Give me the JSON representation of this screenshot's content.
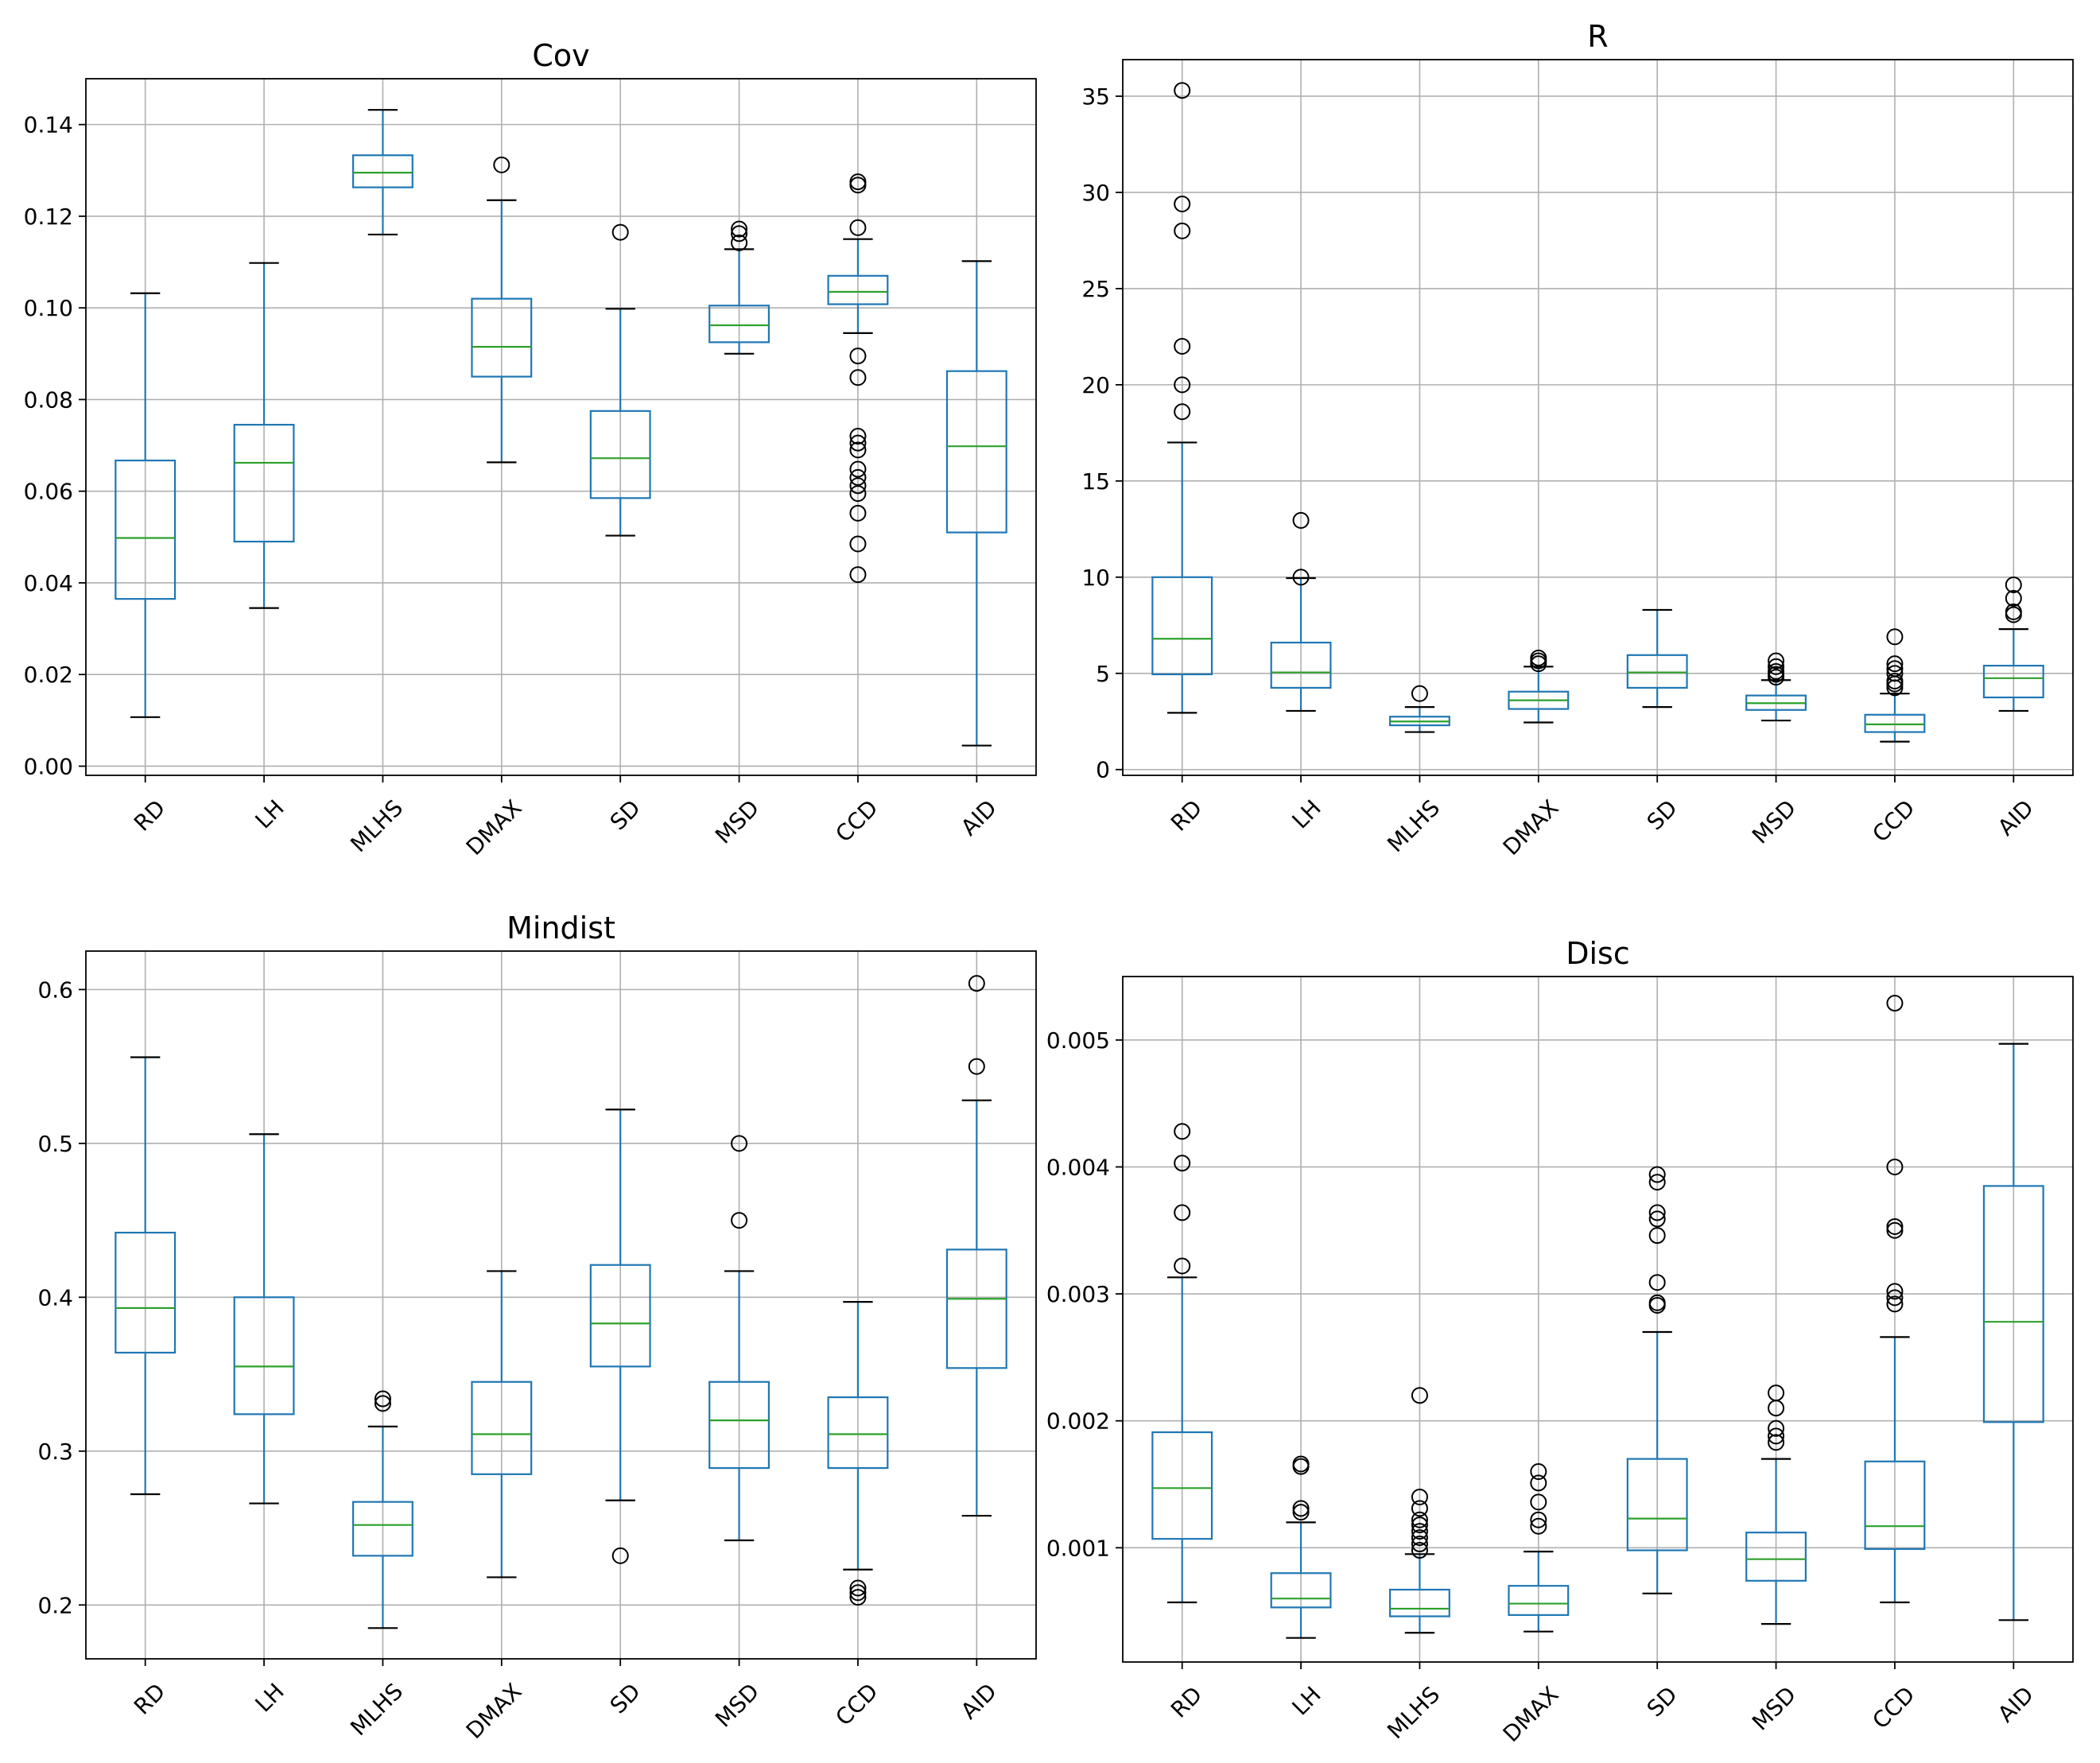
{
  "colors": {
    "box": "#1f77b4",
    "median": "#2ca02c",
    "grid": "#b0b0b0",
    "axes": "#000000",
    "flier": "#000000"
  },
  "chart_data": [
    {
      "id": "cov",
      "type": "boxplot",
      "title": "Cov",
      "categories": [
        "RD",
        "LH",
        "MLHS",
        "DMAX",
        "SD",
        "MSD",
        "CCD",
        "AID"
      ],
      "ylim": [
        -0.002,
        0.15
      ],
      "yticks": [
        0.0,
        0.02,
        0.04,
        0.06,
        0.08,
        0.1,
        0.12,
        0.14
      ],
      "ytick_labels": [
        "0.00",
        "0.02",
        "0.04",
        "0.06",
        "0.08",
        "0.10",
        "0.12",
        "0.14"
      ],
      "grid": true,
      "boxes": [
        {
          "label": "RD",
          "whislo": 0.0107,
          "q1": 0.0365,
          "med": 0.0498,
          "q3": 0.0667,
          "whishi": 0.1032,
          "fliers": []
        },
        {
          "label": "LH",
          "whislo": 0.0345,
          "q1": 0.049,
          "med": 0.0662,
          "q3": 0.0745,
          "whishi": 0.1098,
          "fliers": []
        },
        {
          "label": "MLHS",
          "whislo": 0.116,
          "q1": 0.1263,
          "med": 0.1295,
          "q3": 0.1333,
          "whishi": 0.1432,
          "fliers": []
        },
        {
          "label": "DMAX",
          "whislo": 0.0663,
          "q1": 0.085,
          "med": 0.0915,
          "q3": 0.102,
          "whishi": 0.1235,
          "fliers": [
            0.1312
          ]
        },
        {
          "label": "SD",
          "whislo": 0.0503,
          "q1": 0.0585,
          "med": 0.0672,
          "q3": 0.0775,
          "whishi": 0.0998,
          "fliers": [
            0.1165
          ]
        },
        {
          "label": "MSD",
          "whislo": 0.09,
          "q1": 0.0925,
          "med": 0.0962,
          "q3": 0.1005,
          "whishi": 0.1128,
          "fliers": [
            0.1142,
            0.1162,
            0.1172
          ]
        },
        {
          "label": "CCD",
          "whislo": 0.0945,
          "q1": 0.1008,
          "med": 0.1035,
          "q3": 0.107,
          "whishi": 0.115,
          "fliers": [
            0.0418,
            0.0485,
            0.0552,
            0.0595,
            0.0612,
            0.063,
            0.0648,
            0.069,
            0.0705,
            0.072,
            0.0848,
            0.0895,
            0.1175,
            0.1268,
            0.1275
          ]
        },
        {
          "label": "AID",
          "whislo": 0.0045,
          "q1": 0.051,
          "med": 0.0698,
          "q3": 0.0862,
          "whishi": 0.1102,
          "fliers": []
        }
      ]
    },
    {
      "id": "r",
      "type": "boxplot",
      "title": "R",
      "categories": [
        "RD",
        "LH",
        "MLHS",
        "DMAX",
        "SD",
        "MSD",
        "CCD",
        "AID"
      ],
      "ylim": [
        -0.3,
        36.9
      ],
      "yticks": [
        0,
        5,
        10,
        15,
        20,
        25,
        30,
        35
      ],
      "ytick_labels": [
        "0",
        "5",
        "10",
        "15",
        "20",
        "25",
        "30",
        "35"
      ],
      "grid": true,
      "boxes": [
        {
          "label": "RD",
          "whislo": 2.95,
          "q1": 4.95,
          "med": 6.8,
          "q3": 10.0,
          "whishi": 17.0,
          "fliers": [
            18.6,
            20.0,
            22.0,
            28.0,
            29.4,
            35.3
          ]
        },
        {
          "label": "LH",
          "whislo": 3.05,
          "q1": 4.25,
          "med": 5.05,
          "q3": 6.6,
          "whishi": 9.95,
          "fliers": [
            10.0,
            12.95
          ]
        },
        {
          "label": "MLHS",
          "whislo": 1.95,
          "q1": 2.3,
          "med": 2.5,
          "q3": 2.75,
          "whishi": 3.25,
          "fliers": [
            3.95
          ]
        },
        {
          "label": "DMAX",
          "whislo": 2.45,
          "q1": 3.15,
          "med": 3.6,
          "q3": 4.05,
          "whishi": 5.35,
          "fliers": [
            5.5,
            5.65,
            5.8
          ]
        },
        {
          "label": "SD",
          "whislo": 3.25,
          "q1": 4.25,
          "med": 5.05,
          "q3": 5.95,
          "whishi": 8.3,
          "fliers": []
        },
        {
          "label": "MSD",
          "whislo": 2.55,
          "q1": 3.1,
          "med": 3.45,
          "q3": 3.85,
          "whishi": 4.65,
          "fliers": [
            4.8,
            4.95,
            5.1,
            5.35,
            5.65
          ]
        },
        {
          "label": "CCD",
          "whislo": 1.45,
          "q1": 1.95,
          "med": 2.35,
          "q3": 2.85,
          "whishi": 3.95,
          "fliers": [
            4.25,
            4.45,
            4.6,
            5.0,
            5.25,
            5.5,
            6.9
          ]
        },
        {
          "label": "AID",
          "whislo": 3.05,
          "q1": 3.75,
          "med": 4.75,
          "q3": 5.4,
          "whishi": 7.3,
          "fliers": [
            8.05,
            8.2,
            8.9,
            9.6
          ]
        }
      ]
    },
    {
      "id": "mindist",
      "type": "boxplot",
      "title": "Mindist",
      "categories": [
        "RD",
        "LH",
        "MLHS",
        "DMAX",
        "SD",
        "MSD",
        "CCD",
        "AID"
      ],
      "ylim": [
        0.165,
        0.625
      ],
      "yticks": [
        0.2,
        0.3,
        0.4,
        0.5,
        0.6
      ],
      "ytick_labels": [
        "0.2",
        "0.3",
        "0.4",
        "0.5",
        "0.6"
      ],
      "grid": true,
      "boxes": [
        {
          "label": "RD",
          "whislo": 0.272,
          "q1": 0.364,
          "med": 0.393,
          "q3": 0.442,
          "whishi": 0.556,
          "fliers": []
        },
        {
          "label": "LH",
          "whislo": 0.266,
          "q1": 0.324,
          "med": 0.355,
          "q3": 0.4,
          "whishi": 0.506,
          "fliers": []
        },
        {
          "label": "MLHS",
          "whislo": 0.185,
          "q1": 0.232,
          "med": 0.252,
          "q3": 0.267,
          "whishi": 0.316,
          "fliers": [
            0.331,
            0.334
          ]
        },
        {
          "label": "DMAX",
          "whislo": 0.218,
          "q1": 0.285,
          "med": 0.311,
          "q3": 0.345,
          "whishi": 0.417,
          "fliers": []
        },
        {
          "label": "SD",
          "whislo": 0.268,
          "q1": 0.355,
          "med": 0.383,
          "q3": 0.421,
          "whishi": 0.522,
          "fliers": [
            0.232
          ]
        },
        {
          "label": "MSD",
          "whislo": 0.242,
          "q1": 0.289,
          "med": 0.32,
          "q3": 0.345,
          "whishi": 0.417,
          "fliers": [
            0.45,
            0.5
          ]
        },
        {
          "label": "CCD",
          "whislo": 0.223,
          "q1": 0.289,
          "med": 0.311,
          "q3": 0.335,
          "whishi": 0.397,
          "fliers": [
            0.205,
            0.208,
            0.211
          ]
        },
        {
          "label": "AID",
          "whislo": 0.258,
          "q1": 0.354,
          "med": 0.399,
          "q3": 0.431,
          "whishi": 0.528,
          "fliers": [
            0.55,
            0.604
          ]
        }
      ]
    },
    {
      "id": "disc",
      "type": "boxplot",
      "title": "Disc",
      "categories": [
        "RD",
        "LH",
        "MLHS",
        "DMAX",
        "SD",
        "MSD",
        "CCD",
        "AID"
      ],
      "ylim": [
        0.0001,
        0.0055
      ],
      "yticks": [
        0.001,
        0.002,
        0.003,
        0.004,
        0.005
      ],
      "ytick_labels": [
        "0.001",
        "0.002",
        "0.003",
        "0.004",
        "0.005"
      ],
      "grid": true,
      "boxes": [
        {
          "label": "RD",
          "whislo": 0.00057,
          "q1": 0.00107,
          "med": 0.00147,
          "q3": 0.00191,
          "whishi": 0.00313,
          "fliers": [
            0.00322,
            0.00364,
            0.00403,
            0.00428
          ]
        },
        {
          "label": "LH",
          "whislo": 0.00029,
          "q1": 0.00053,
          "med": 0.0006,
          "q3": 0.0008,
          "whishi": 0.0012,
          "fliers": [
            0.00128,
            0.00131,
            0.00164,
            0.00166
          ]
        },
        {
          "label": "MLHS",
          "whislo": 0.00033,
          "q1": 0.00046,
          "med": 0.00052,
          "q3": 0.00067,
          "whishi": 0.00095,
          "fliers": [
            0.00098,
            0.00103,
            0.00108,
            0.00113,
            0.00118,
            0.00122,
            0.00131,
            0.0014,
            0.0022
          ]
        },
        {
          "label": "DMAX",
          "whislo": 0.00034,
          "q1": 0.00047,
          "med": 0.00056,
          "q3": 0.0007,
          "whishi": 0.00097,
          "fliers": [
            0.00117,
            0.00122,
            0.00136,
            0.00151,
            0.0016
          ]
        },
        {
          "label": "SD",
          "whislo": 0.00064,
          "q1": 0.00098,
          "med": 0.00123,
          "q3": 0.0017,
          "whishi": 0.0027,
          "fliers": [
            0.00291,
            0.00293,
            0.00309,
            0.00346,
            0.00359,
            0.00364,
            0.00388,
            0.00394
          ]
        },
        {
          "label": "MSD",
          "whislo": 0.0004,
          "q1": 0.00074,
          "med": 0.00091,
          "q3": 0.00112,
          "whishi": 0.0017,
          "fliers": [
            0.00183,
            0.00188,
            0.00194,
            0.0021,
            0.00222
          ]
        },
        {
          "label": "CCD",
          "whislo": 0.00057,
          "q1": 0.00099,
          "med": 0.00117,
          "q3": 0.00168,
          "whishi": 0.00266,
          "fliers": [
            0.00292,
            0.00297,
            0.00302,
            0.0035,
            0.00353,
            0.004,
            0.00529
          ]
        },
        {
          "label": "AID",
          "whislo": 0.00043,
          "q1": 0.00199,
          "med": 0.00278,
          "q3": 0.00385,
          "whishi": 0.00497,
          "fliers": []
        }
      ]
    }
  ]
}
